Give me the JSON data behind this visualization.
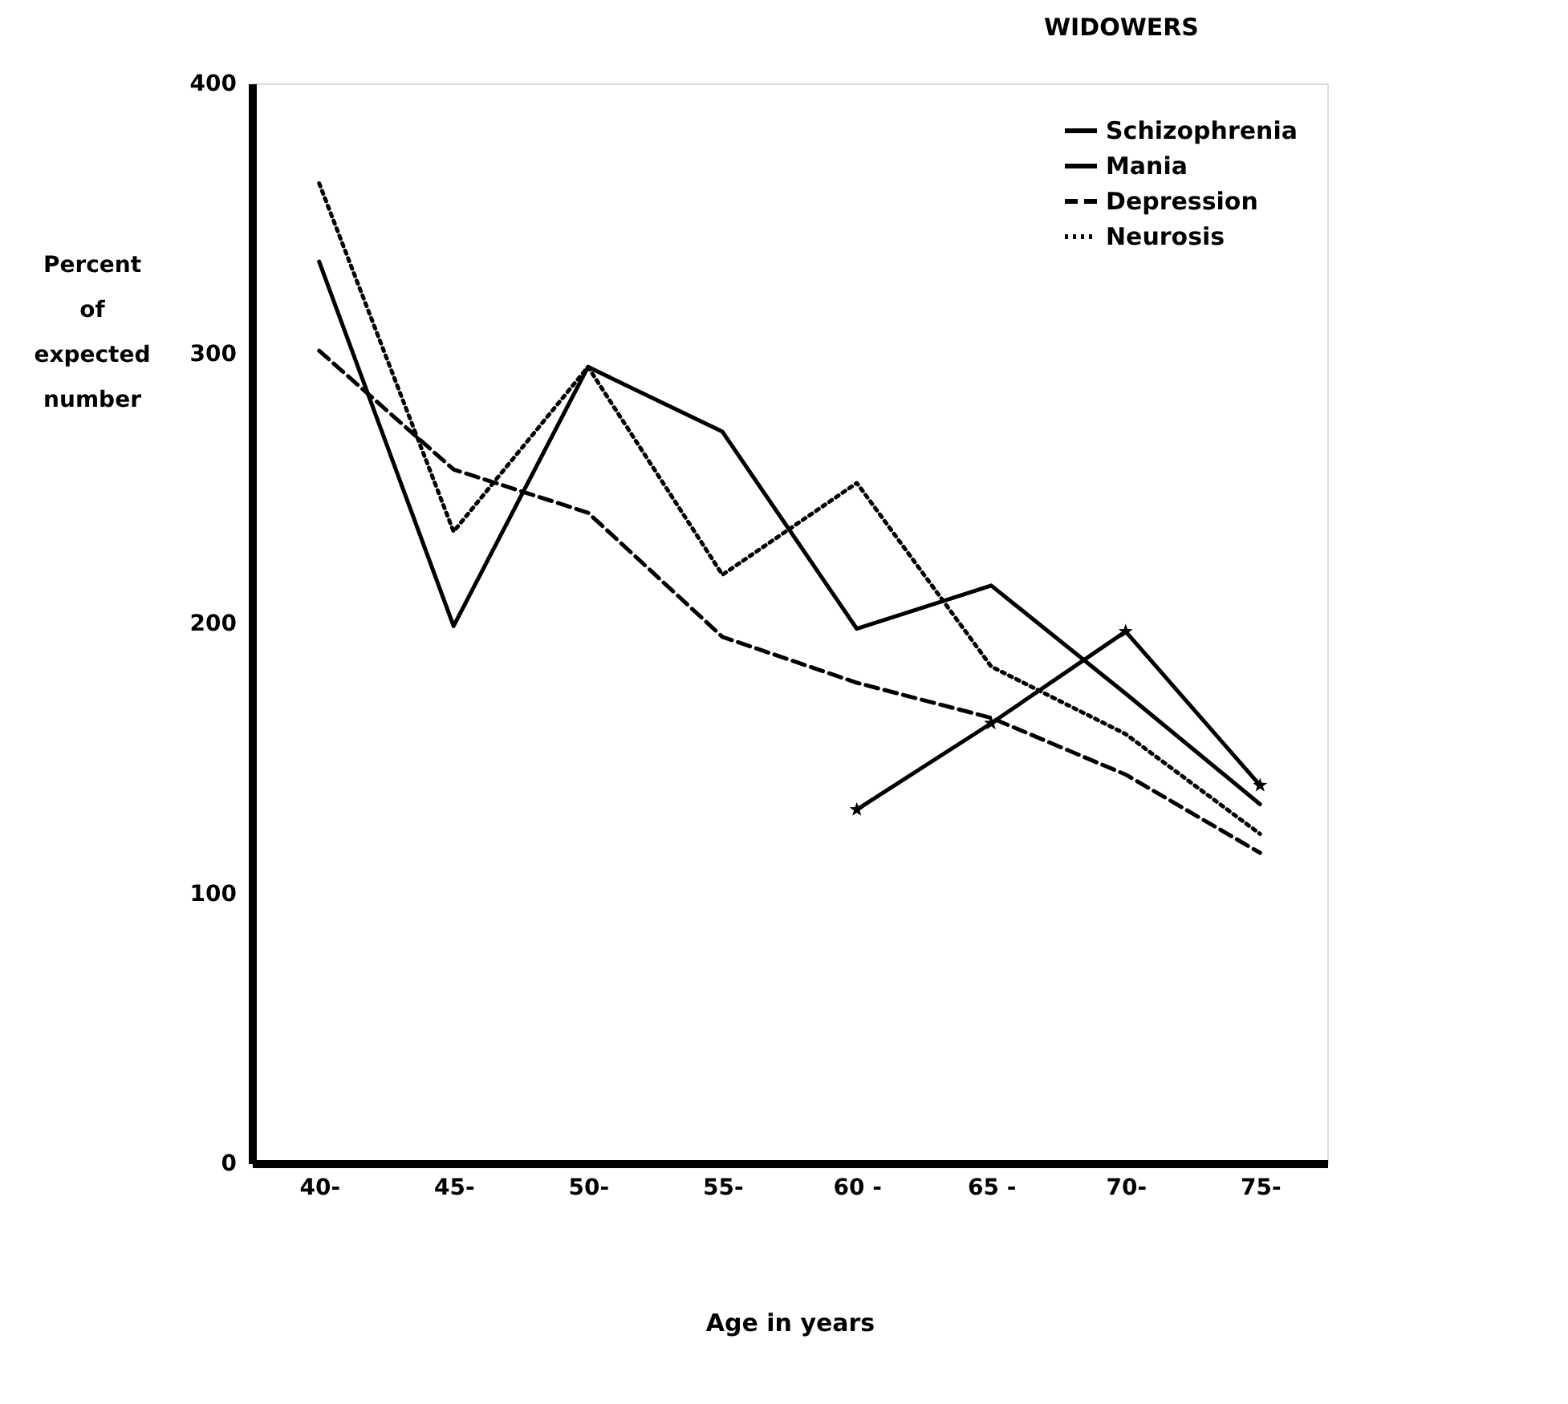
{
  "chart_data": {
    "type": "line",
    "title": "WIDOWERS",
    "xlabel": "Age   in   years",
    "ylabel": "Percent of expected number",
    "categories": [
      "40-",
      "45-",
      "50-",
      "55-",
      "60 -",
      "65 -",
      "70-",
      "75-"
    ],
    "ylim": [
      0,
      400
    ],
    "yticks": [
      0,
      100,
      200,
      300,
      400
    ],
    "grid": false,
    "legend": "top right",
    "series": [
      {
        "name": "Schizophrenia",
        "color": "#000000",
        "line_style": "solid",
        "marker": "none",
        "values": [
          334,
          199,
          295,
          271,
          198,
          214,
          174,
          133
        ]
      },
      {
        "name": "Mania",
        "color": "#000000",
        "line_style": "solid",
        "marker": "star",
        "values": [
          null,
          null,
          null,
          null,
          131,
          163,
          197,
          140
        ]
      },
      {
        "name": "Depression",
        "color": "#000000",
        "line_style": "dashed",
        "marker": "none",
        "values": [
          301,
          257,
          241,
          195,
          178,
          165,
          144,
          115
        ]
      },
      {
        "name": "Neurosis",
        "color": "#000000",
        "line_style": "dotted",
        "marker": "none",
        "values": [
          363,
          234,
          295,
          218,
          252,
          184,
          159,
          122
        ]
      }
    ]
  }
}
